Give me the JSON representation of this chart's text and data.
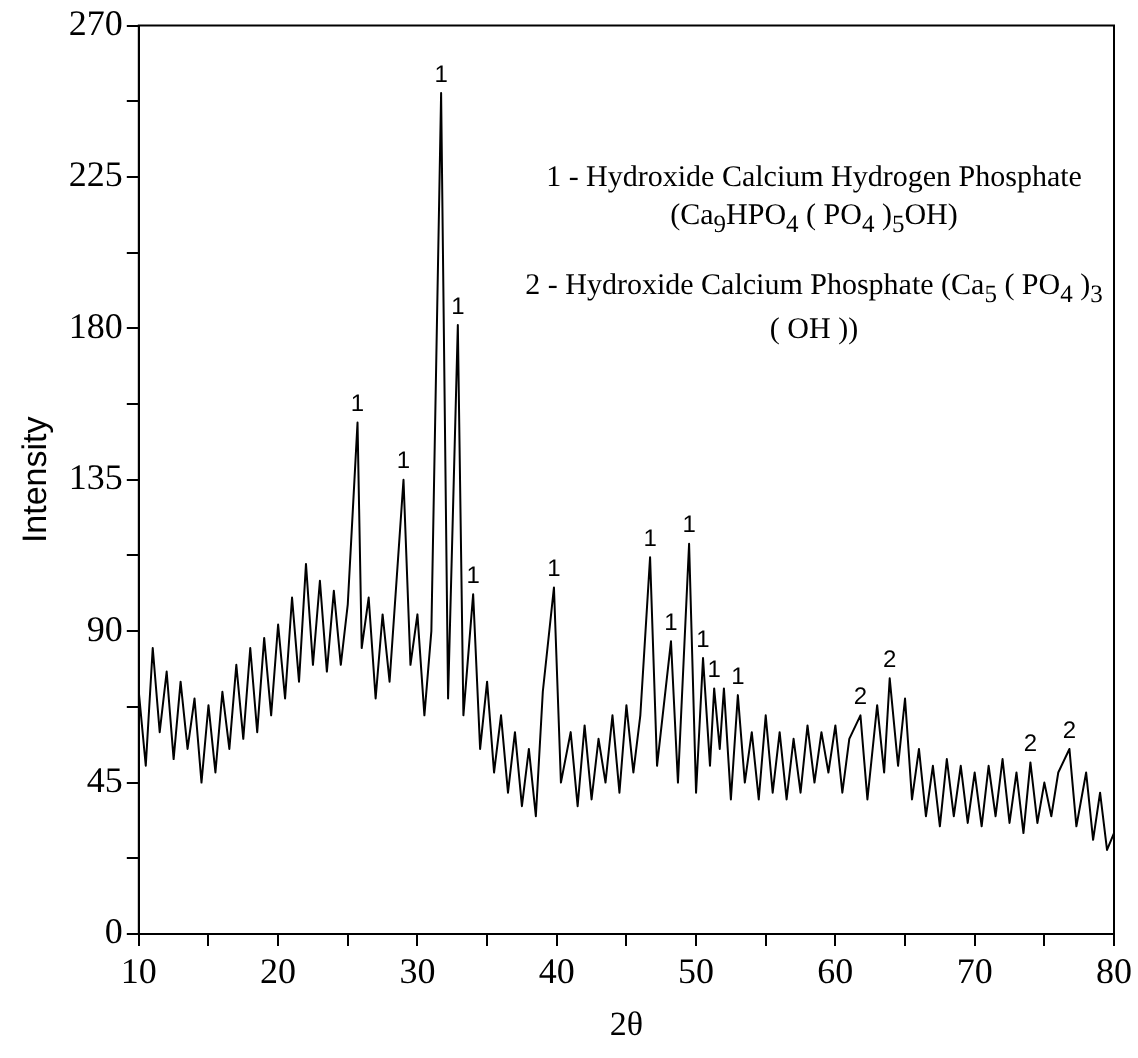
{
  "chart_data": {
    "type": "line",
    "xlabel": "2θ",
    "ylabel": "Intensity",
    "xlim": [
      10,
      80
    ],
    "ylim": [
      0,
      270
    ],
    "xticks": [
      10,
      {
        "value": 15,
        "label": null
      },
      20,
      {
        "value": 25,
        "label": null
      },
      30,
      {
        "value": 35,
        "label": null
      },
      40,
      {
        "value": 45,
        "label": null
      },
      50,
      {
        "value": 55,
        "label": null
      },
      60,
      {
        "value": 65,
        "label": null
      },
      70,
      {
        "value": 75,
        "label": null
      },
      80
    ],
    "yticks": [
      0,
      {
        "value": 22.5,
        "label": null
      },
      45,
      {
        "value": 67.5,
        "label": null
      },
      90,
      {
        "value": 112.5,
        "label": null
      },
      135,
      {
        "value": 157.5,
        "label": null
      },
      180,
      {
        "value": 202.5,
        "label": null
      },
      225,
      {
        "value": 247.5,
        "label": null
      },
      270
    ],
    "grid": false,
    "legend": false,
    "marker": "none",
    "line_style": "solid",
    "series": [
      {
        "color": "#000000",
        "x": [
          10,
          10.5,
          11,
          11.5,
          12,
          12.5,
          13,
          13.5,
          14,
          14.5,
          15,
          15.5,
          16,
          16.5,
          17,
          17.5,
          18,
          18.5,
          19,
          19.5,
          20,
          20.5,
          21,
          21.5,
          22,
          22.5,
          23,
          23.5,
          24,
          24.5,
          25,
          25.7,
          26,
          26.5,
          27,
          27.5,
          28,
          29,
          29.5,
          30,
          30.5,
          31,
          31.7,
          32.2,
          32.9,
          33.3,
          34,
          34.5,
          35,
          35.5,
          36,
          36.5,
          37,
          37.5,
          38,
          38.5,
          39,
          39.8,
          40.3,
          41,
          41.5,
          42,
          42.5,
          43,
          43.5,
          44,
          44.5,
          45,
          45.5,
          46,
          46.7,
          47.2,
          48.2,
          48.7,
          49.5,
          50,
          50.5,
          51,
          51.3,
          51.7,
          52,
          52.5,
          53,
          53.5,
          54,
          54.5,
          55,
          55.5,
          56,
          56.5,
          57,
          57.5,
          58,
          58.5,
          59,
          59.5,
          60,
          60.5,
          61,
          61.8,
          62.3,
          63,
          63.5,
          63.9,
          64.5,
          65,
          65.5,
          66,
          66.5,
          67,
          67.5,
          68,
          68.5,
          69,
          69.5,
          70,
          70.5,
          71,
          71.5,
          72,
          72.5,
          73,
          73.5,
          74,
          74.5,
          75,
          75.5,
          76,
          76.8,
          77.3,
          78,
          78.5,
          79,
          79.5,
          80
        ],
        "values": [
          72,
          50,
          85,
          60,
          78,
          52,
          75,
          55,
          70,
          45,
          68,
          48,
          72,
          55,
          80,
          58,
          85,
          60,
          88,
          65,
          92,
          70,
          100,
          75,
          110,
          80,
          105,
          78,
          102,
          80,
          98,
          152,
          85,
          100,
          70,
          95,
          75,
          135,
          80,
          95,
          65,
          90,
          250,
          70,
          181,
          65,
          101,
          55,
          75,
          48,
          65,
          42,
          60,
          38,
          55,
          35,
          72,
          103,
          45,
          60,
          38,
          62,
          40,
          58,
          45,
          65,
          42,
          68,
          48,
          65,
          112,
          50,
          87,
          45,
          116,
          42,
          82,
          50,
          73,
          55,
          73,
          40,
          71,
          45,
          60,
          40,
          65,
          42,
          60,
          40,
          58,
          42,
          62,
          45,
          60,
          48,
          62,
          42,
          58,
          65,
          40,
          68,
          48,
          76,
          50,
          70,
          40,
          55,
          35,
          50,
          32,
          52,
          35,
          50,
          33,
          48,
          32,
          50,
          35,
          52,
          33,
          48,
          30,
          51,
          33,
          45,
          35,
          48,
          55,
          32,
          48,
          28,
          42,
          25,
          30
        ]
      }
    ],
    "annotations": [
      "1 - Hydroxide Calcium Hydrogen Phosphate (Ca$_{9}$HPO$_{4}$ ( PO$_{4}$ )$_{5}$OH)",
      "2 - Hydroxide Calcium Phosphate (Ca$_{5}$ ( PO$_{4}$ )$_{3}$ ( OH ))",
      {
        "text": "1",
        "x": 25.7,
        "y": 152
      },
      {
        "text": "1",
        "x": 29,
        "y": 135
      },
      {
        "text": "1",
        "x": 31.7,
        "y": 250
      },
      {
        "text": "1",
        "x": 32.9,
        "y": 181
      },
      {
        "text": "1",
        "x": 34,
        "y": 101
      },
      {
        "text": "1",
        "x": 39.8,
        "y": 103
      },
      {
        "text": "1",
        "x": 46.7,
        "y": 112
      },
      {
        "text": "1",
        "x": 48.2,
        "y": 87
      },
      {
        "text": "1",
        "x": 49.5,
        "y": 116
      },
      {
        "text": "1",
        "x": 50.5,
        "y": 82
      },
      {
        "text": "1",
        "x": 51.3,
        "y": 73
      },
      {
        "text": "1",
        "x": 53,
        "y": 71
      },
      {
        "text": "2",
        "x": 61.8,
        "y": 65
      },
      {
        "text": "2",
        "x": 63.9,
        "y": 76
      },
      {
        "text": "2",
        "x": 74,
        "y": 51
      },
      {
        "text": "2",
        "x": 76.8,
        "y": 55
      }
    ]
  }
}
